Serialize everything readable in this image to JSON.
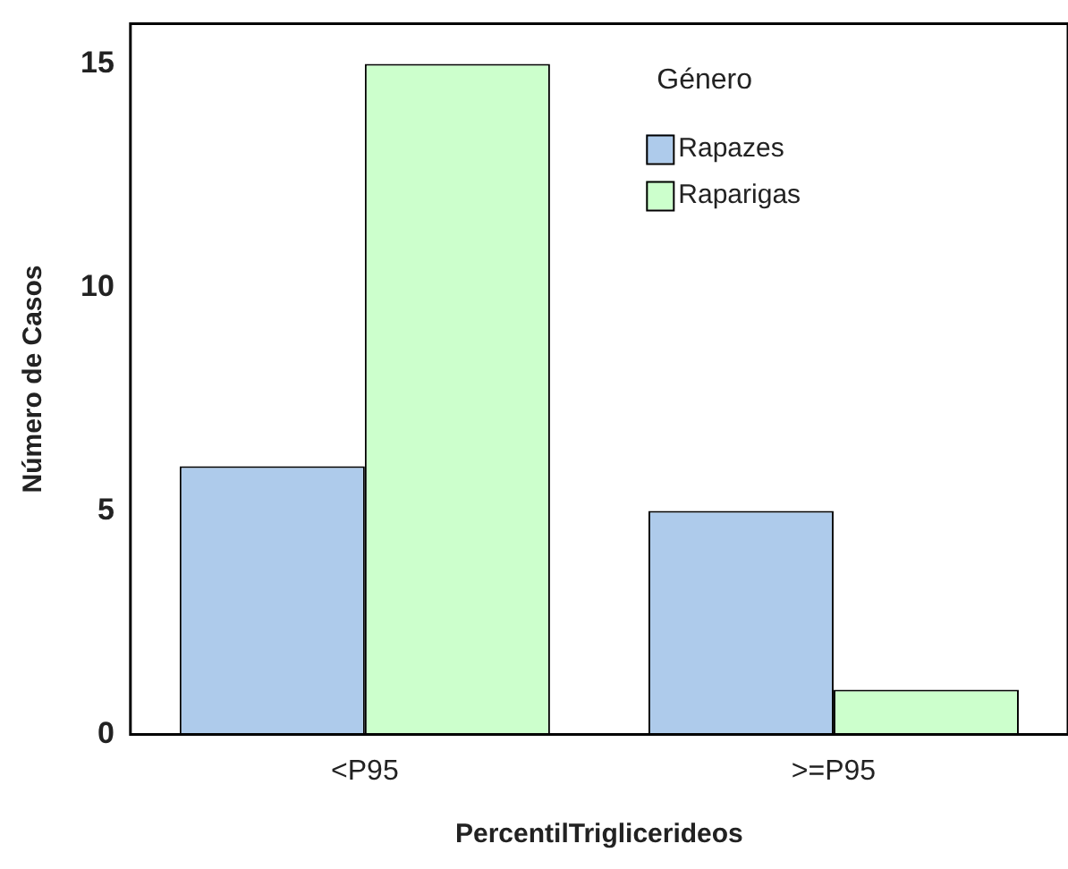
{
  "chart_data": {
    "type": "bar",
    "xlabel": "PercentilTriglicerideos",
    "ylabel": "Número de Casos",
    "legend_title": "Género",
    "categories": [
      "<P95",
      ">=P95"
    ],
    "series": [
      {
        "name": "Rapazes",
        "color": "#aecbeb",
        "values": [
          6,
          5
        ]
      },
      {
        "name": "Raparigas",
        "color": "#ccffcc",
        "values": [
          15,
          1
        ]
      }
    ],
    "ylim": [
      0,
      15.9
    ],
    "yticks": [
      0,
      5,
      10,
      15
    ],
    "grid": false,
    "legend": "top right"
  }
}
